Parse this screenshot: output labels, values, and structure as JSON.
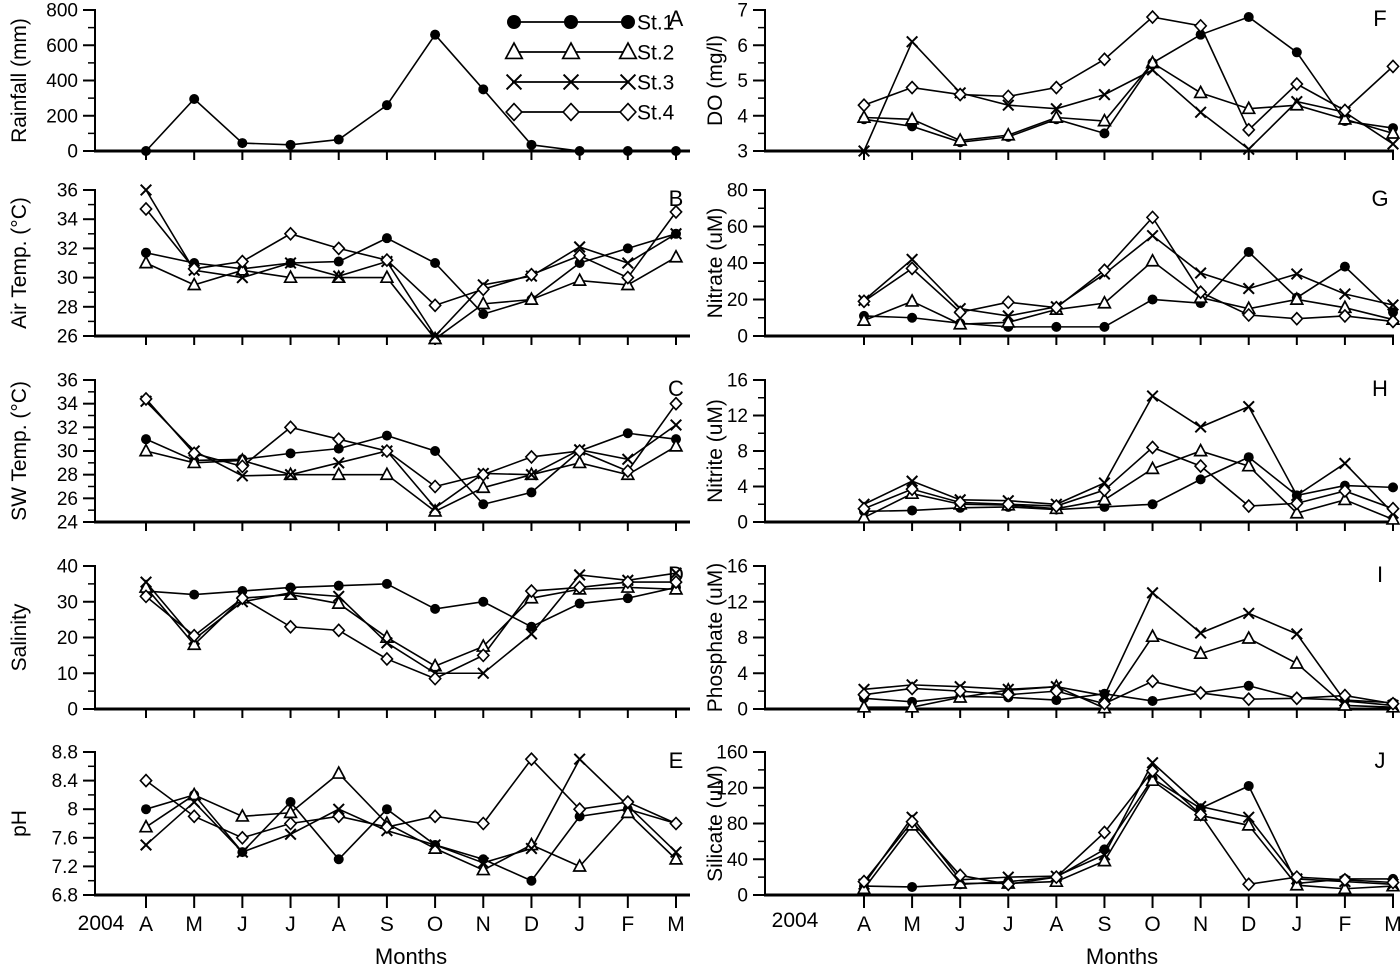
{
  "figure": {
    "year_label": "2004",
    "x_axis_label": "Months",
    "months": [
      "A",
      "M",
      "J",
      "J",
      "A",
      "S",
      "O",
      "N",
      "D",
      "J",
      "F",
      "M"
    ],
    "stations": [
      {
        "label": "St.1",
        "marker": "filled-circle"
      },
      {
        "label": "St.2",
        "marker": "open-triangle"
      },
      {
        "label": "St.3",
        "marker": "x"
      },
      {
        "label": "St.4",
        "marker": "open-diamond"
      }
    ],
    "colors": {
      "line": "#000000",
      "background": "#ffffff",
      "text": "#000000"
    }
  },
  "chart_data": [
    {
      "panel": "A",
      "type": "line",
      "ylabel": "Rainfall (mm)",
      "categories": [
        "A",
        "M",
        "J",
        "J",
        "A",
        "S",
        "O",
        "N",
        "D",
        "J",
        "F",
        "M"
      ],
      "ylim": [
        0,
        800
      ],
      "yticks": [
        0,
        200,
        400,
        600,
        800
      ],
      "ytick_labels": [
        "0",
        "200",
        "400",
        "600",
        "800"
      ],
      "yminor": 100,
      "legend": true,
      "grid": false,
      "series": [
        {
          "name": "St.1",
          "marker": "filled-circle",
          "values": [
            0,
            295,
            45,
            35,
            65,
            260,
            660,
            350,
            35,
            0,
            0,
            0
          ]
        }
      ]
    },
    {
      "panel": "B",
      "type": "line",
      "ylabel": "Air Temp. (°C)",
      "categories": [
        "A",
        "M",
        "J",
        "J",
        "A",
        "S",
        "O",
        "N",
        "D",
        "J",
        "F",
        "M"
      ],
      "ylim": [
        26,
        36
      ],
      "yticks": [
        26,
        28,
        30,
        32,
        34,
        36
      ],
      "ytick_labels": [
        "26",
        "28",
        "30",
        "32",
        "34",
        "36"
      ],
      "yminor": 1,
      "legend": false,
      "grid": false,
      "series": [
        {
          "name": "St.1",
          "marker": "filled-circle",
          "values": [
            31.7,
            31,
            30.6,
            31,
            31.1,
            32.7,
            31,
            27.5,
            28.5,
            31,
            32,
            33
          ]
        },
        {
          "name": "St.2",
          "marker": "open-triangle",
          "values": [
            31,
            29.5,
            30.5,
            30,
            30,
            30,
            25.8,
            28.2,
            28.5,
            29.8,
            29.5,
            31.4
          ]
        },
        {
          "name": "St.3",
          "marker": "x",
          "values": [
            36,
            30.5,
            30,
            31,
            30.1,
            31.1,
            26,
            29.5,
            30.1,
            32.1,
            31,
            33
          ]
        },
        {
          "name": "St.4",
          "marker": "open-diamond",
          "values": [
            34.7,
            30.6,
            31.1,
            33,
            32,
            31.2,
            28.1,
            29.2,
            30.2,
            31.5,
            30,
            34.5
          ]
        }
      ]
    },
    {
      "panel": "C",
      "type": "line",
      "ylabel": "SW Temp. (°C)",
      "categories": [
        "A",
        "M",
        "J",
        "J",
        "A",
        "S",
        "O",
        "N",
        "D",
        "J",
        "F",
        "M"
      ],
      "ylim": [
        24,
        36
      ],
      "yticks": [
        24,
        26,
        28,
        30,
        32,
        34,
        36
      ],
      "ytick_labels": [
        "24",
        "26",
        "28",
        "30",
        "32",
        "34",
        "36"
      ],
      "yminor": 1,
      "legend": false,
      "grid": false,
      "series": [
        {
          "name": "St.1",
          "marker": "filled-circle",
          "values": [
            31,
            29.2,
            29.3,
            29.8,
            30.2,
            31.3,
            30,
            25.5,
            26.5,
            30,
            31.5,
            31
          ]
        },
        {
          "name": "St.2",
          "marker": "open-triangle",
          "values": [
            30,
            29,
            29.2,
            28,
            28,
            28,
            24.9,
            26.9,
            28,
            29,
            28,
            30.4
          ]
        },
        {
          "name": "St.3",
          "marker": "x",
          "values": [
            34.2,
            30,
            27.9,
            28,
            29,
            30,
            25.2,
            28.1,
            28,
            30.1,
            29.3,
            32.2
          ]
        },
        {
          "name": "St.4",
          "marker": "open-diamond",
          "values": [
            34.4,
            29.8,
            28.7,
            32,
            31,
            30,
            27,
            28,
            29.5,
            30,
            28.3,
            34
          ]
        }
      ]
    },
    {
      "panel": "D",
      "type": "line",
      "ylabel": "Salinity",
      "categories": [
        "A",
        "M",
        "J",
        "J",
        "A",
        "S",
        "O",
        "N",
        "D",
        "J",
        "F",
        "M"
      ],
      "ylim": [
        0,
        40
      ],
      "yticks": [
        0,
        10,
        20,
        30,
        40
      ],
      "ytick_labels": [
        "0",
        "10",
        "20",
        "30",
        "40"
      ],
      "yminor": 5,
      "legend": false,
      "grid": false,
      "series": [
        {
          "name": "St.1",
          "marker": "filled-circle",
          "values": [
            33,
            32,
            33,
            34,
            34.5,
            35,
            28,
            30,
            23,
            29.5,
            31,
            34
          ]
        },
        {
          "name": "St.2",
          "marker": "open-triangle",
          "values": [
            34,
            18,
            31,
            32,
            29.5,
            20,
            12,
            17.5,
            31,
            33.5,
            34,
            33.5
          ]
        },
        {
          "name": "St.3",
          "marker": "x",
          "values": [
            35.5,
            19.5,
            30,
            32.5,
            31.5,
            18.5,
            10,
            10,
            21,
            37.5,
            36,
            38
          ]
        },
        {
          "name": "St.4",
          "marker": "open-diamond",
          "values": [
            31.5,
            20.5,
            31,
            23,
            22,
            14,
            8.5,
            15,
            33,
            34,
            35.5,
            35.5
          ]
        }
      ]
    },
    {
      "panel": "E",
      "type": "line",
      "ylabel": "pH",
      "categories": [
        "A",
        "M",
        "J",
        "J",
        "A",
        "S",
        "O",
        "N",
        "D",
        "J",
        "F",
        "M"
      ],
      "ylim": [
        6.8,
        8.8
      ],
      "yticks": [
        6.8,
        7.2,
        7.6,
        8,
        8.4,
        8.8
      ],
      "ytick_labels": [
        "6.8",
        "7.2",
        "7.6",
        "8",
        "8.4",
        "8.8"
      ],
      "yminor": 0.2,
      "legend": false,
      "grid": false,
      "series": [
        {
          "name": "St.1",
          "marker": "filled-circle",
          "values": [
            8,
            8.2,
            7.4,
            8.1,
            7.3,
            8,
            7.5,
            7.3,
            7,
            7.9,
            8,
            7.8
          ]
        },
        {
          "name": "St.2",
          "marker": "open-triangle",
          "values": [
            7.75,
            8.2,
            7.9,
            7.95,
            8.5,
            7.8,
            7.45,
            7.15,
            7.5,
            7.2,
            7.95,
            7.3
          ]
        },
        {
          "name": "St.3",
          "marker": "x",
          "values": [
            7.5,
            8.1,
            7.4,
            7.65,
            8,
            7.7,
            7.5,
            7.25,
            7.45,
            8.7,
            8.05,
            7.4
          ]
        },
        {
          "name": "St.4",
          "marker": "open-diamond",
          "values": [
            8.4,
            7.9,
            7.6,
            7.8,
            7.9,
            7.75,
            7.9,
            7.8,
            8.7,
            8,
            8.1,
            7.8
          ]
        }
      ]
    },
    {
      "panel": "F",
      "type": "line",
      "ylabel": "DO (mg/l)",
      "categories": [
        "A",
        "M",
        "J",
        "J",
        "A",
        "S",
        "O",
        "N",
        "D",
        "J",
        "F",
        "M"
      ],
      "ylim": [
        3,
        7
      ],
      "yticks": [
        3,
        4,
        5,
        6,
        7
      ],
      "ytick_labels": [
        "3",
        "4",
        "5",
        "6",
        "7"
      ],
      "yminor": 0.5,
      "legend": false,
      "grid": false,
      "series": [
        {
          "name": "St.1",
          "marker": "filled-circle",
          "values": [
            3.9,
            3.7,
            3.25,
            3.4,
            3.9,
            3.5,
            5.5,
            6.3,
            6.8,
            5.8,
            3.85,
            3.65
          ]
        },
        {
          "name": "St.2",
          "marker": "open-triangle",
          "values": [
            3.95,
            3.9,
            3.3,
            3.45,
            3.95,
            3.85,
            5.5,
            4.65,
            4.2,
            4.3,
            3.9,
            3.5
          ]
        },
        {
          "name": "St.3",
          "marker": "x",
          "values": [
            3,
            6.1,
            4.65,
            4.3,
            4.2,
            4.6,
            5.3,
            4.1,
            3.05,
            4.4,
            4.1,
            3.2
          ]
        },
        {
          "name": "St.4",
          "marker": "open-diamond",
          "values": [
            4.3,
            4.8,
            4.6,
            4.55,
            4.8,
            5.6,
            6.8,
            6.55,
            3.6,
            4.9,
            4.15,
            5.4
          ]
        }
      ]
    },
    {
      "panel": "G",
      "type": "line",
      "ylabel": "Nitrate (uM)",
      "categories": [
        "A",
        "M",
        "J",
        "J",
        "A",
        "S",
        "O",
        "N",
        "D",
        "J",
        "F",
        "M"
      ],
      "ylim": [
        0,
        80
      ],
      "yticks": [
        0,
        20,
        40,
        60,
        80
      ],
      "ytick_labels": [
        "0",
        "20",
        "40",
        "60",
        "80"
      ],
      "yminor": 10,
      "legend": false,
      "grid": false,
      "series": [
        {
          "name": "St.1",
          "marker": "filled-circle",
          "values": [
            11,
            10,
            7,
            5,
            5,
            5,
            20,
            18,
            46,
            21,
            38,
            13
          ]
        },
        {
          "name": "St.2",
          "marker": "open-triangle",
          "values": [
            8.5,
            19,
            6.5,
            7.5,
            14.5,
            18,
            41,
            21,
            15,
            20,
            15.5,
            9
          ]
        },
        {
          "name": "St.3",
          "marker": "x",
          "values": [
            19.5,
            42,
            15,
            11,
            16,
            34,
            55,
            34.5,
            26,
            34,
            23,
            17
          ]
        },
        {
          "name": "St.4",
          "marker": "open-diamond",
          "values": [
            19,
            37,
            13,
            18.5,
            15.5,
            36,
            65,
            24,
            11.5,
            9.5,
            11,
            8
          ]
        }
      ]
    },
    {
      "panel": "H",
      "type": "line",
      "ylabel": "Nitrite (uM)",
      "categories": [
        "A",
        "M",
        "J",
        "J",
        "A",
        "S",
        "O",
        "N",
        "D",
        "J",
        "F",
        "M"
      ],
      "ylim": [
        0,
        16
      ],
      "yticks": [
        0,
        4,
        8,
        12,
        16
      ],
      "ytick_labels": [
        "0",
        "4",
        "8",
        "12",
        "16"
      ],
      "yminor": 2,
      "legend": false,
      "grid": false,
      "series": [
        {
          "name": "St.1",
          "marker": "filled-circle",
          "values": [
            1.2,
            1.3,
            1.6,
            1.7,
            1.4,
            1.7,
            2,
            4.8,
            7.3,
            3,
            4.1,
            3.9
          ]
        },
        {
          "name": "St.2",
          "marker": "open-triangle",
          "values": [
            0.5,
            3.2,
            2,
            1.9,
            1.5,
            2.5,
            6,
            8,
            6.3,
            1,
            2.5,
            0.3
          ]
        },
        {
          "name": "St.3",
          "marker": "x",
          "values": [
            2,
            4.6,
            2.5,
            2.4,
            2,
            4.4,
            14.2,
            10.7,
            13,
            3,
            6.6,
            1
          ]
        },
        {
          "name": "St.4",
          "marker": "open-diamond",
          "values": [
            1.5,
            3.7,
            2.2,
            2,
            1.8,
            3.6,
            8.4,
            6.3,
            1.8,
            2.1,
            3.5,
            1.5
          ]
        }
      ]
    },
    {
      "panel": "I",
      "type": "line",
      "ylabel": "Phosphate (uM)",
      "categories": [
        "A",
        "M",
        "J",
        "J",
        "A",
        "S",
        "O",
        "N",
        "D",
        "J",
        "F",
        "M"
      ],
      "ylim": [
        0,
        16
      ],
      "yticks": [
        0,
        4,
        8,
        12,
        16
      ],
      "ytick_labels": [
        "0",
        "4",
        "8",
        "12",
        "16"
      ],
      "yminor": 2,
      "legend": false,
      "grid": false,
      "series": [
        {
          "name": "St.1",
          "marker": "filled-circle",
          "values": [
            1.2,
            0.8,
            1.4,
            1.3,
            1,
            1.7,
            0.9,
            1.8,
            2.6,
            1.2,
            1,
            0.7
          ]
        },
        {
          "name": "St.2",
          "marker": "open-triangle",
          "values": [
            0.2,
            0.2,
            1.3,
            2.1,
            2.5,
            0.1,
            8.1,
            6.2,
            7.9,
            5.1,
            0.4,
            0.2
          ]
        },
        {
          "name": "St.3",
          "marker": "x",
          "values": [
            2.2,
            2.7,
            2.5,
            2.2,
            2.5,
            1.5,
            13,
            8.5,
            10.7,
            8.4,
            0.9,
            0.4
          ]
        },
        {
          "name": "St.4",
          "marker": "open-diamond",
          "values": [
            1.6,
            2.3,
            2,
            1.6,
            2,
            0.6,
            3.1,
            1.8,
            1.1,
            1.2,
            1.5,
            0.6
          ]
        }
      ]
    },
    {
      "panel": "J",
      "type": "line",
      "ylabel": "Silicate (uM)",
      "categories": [
        "A",
        "M",
        "J",
        "J",
        "A",
        "S",
        "O",
        "N",
        "D",
        "J",
        "F",
        "M"
      ],
      "ylim": [
        0,
        160
      ],
      "yticks": [
        0,
        40,
        80,
        120,
        160
      ],
      "ytick_labels": [
        "0",
        "40",
        "80",
        "120",
        "160"
      ],
      "yminor": 20,
      "legend": false,
      "grid": false,
      "series": [
        {
          "name": "St.1",
          "marker": "filled-circle",
          "values": [
            10,
            9,
            12,
            15,
            20,
            51,
            130,
            97,
            122,
            13,
            18,
            18
          ]
        },
        {
          "name": "St.2",
          "marker": "open-triangle",
          "values": [
            7,
            78,
            13,
            13,
            15,
            38,
            128,
            89,
            78,
            11,
            7,
            10
          ]
        },
        {
          "name": "St.3",
          "marker": "x",
          "values": [
            12,
            87,
            17,
            20,
            21,
            45,
            148,
            99,
            87,
            18,
            15,
            12
          ]
        },
        {
          "name": "St.4",
          "marker": "open-diamond",
          "values": [
            15,
            82,
            22,
            12,
            20,
            70,
            139,
            90,
            12,
            20,
            17,
            14
          ]
        }
      ]
    }
  ]
}
